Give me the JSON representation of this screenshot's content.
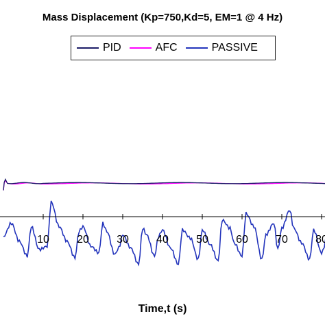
{
  "chart_data": {
    "type": "line",
    "title": "Mass Displacement (Kp=750,Kd=5, EM=1 @ 4 Hz)",
    "xlabel": "Time,t (s)",
    "ylabel": "",
    "xlim": [
      0,
      93
    ],
    "grid": false,
    "legend_position": "top-center",
    "x_ticks": [
      "10",
      "20",
      "30",
      "40",
      "50",
      "60",
      "70",
      "80"
    ],
    "series": [
      {
        "name": "PID",
        "color": "#1a1a66",
        "x": [
          0,
          0.2,
          0.5,
          1,
          2,
          5,
          10,
          20,
          30,
          40,
          50,
          60,
          70,
          80,
          93
        ],
        "y": [
          -0.004,
          0.001,
          0.0025,
          0.0005,
          0.0004,
          0.0004,
          0.0004,
          0.0004,
          0.0004,
          0.0004,
          0.0004,
          0.0004,
          0.0004,
          0.0004,
          0.0004
        ]
      },
      {
        "name": "AFC",
        "color": "#ff00ff",
        "x": [
          0,
          0.2,
          0.5,
          1,
          2,
          5,
          10,
          20,
          30,
          40,
          50,
          60,
          70,
          80,
          93
        ],
        "y": [
          -0.004,
          0.001,
          0.002,
          0.0003,
          0.0002,
          0.0002,
          0.0002,
          0.0002,
          0.0002,
          0.0002,
          0.0002,
          0.0002,
          0.0002,
          0.0002,
          0.0002
        ]
      },
      {
        "name": "PASSIVE",
        "color": "#2233bb",
        "x": [
          0,
          2,
          4,
          6,
          7,
          9,
          11,
          12,
          14,
          16,
          18,
          19,
          20,
          22,
          24,
          25,
          26,
          28,
          29,
          30,
          32,
          34,
          35,
          36,
          38,
          39,
          40,
          42,
          44,
          45,
          47,
          49,
          50,
          52,
          54,
          55,
          57,
          58,
          60,
          61,
          63,
          65,
          66,
          68,
          69,
          70,
          72,
          73,
          75,
          77,
          78,
          80,
          82,
          83,
          85,
          87,
          89,
          90,
          92,
          93
        ],
        "y": [
          -0.032,
          -0.024,
          -0.035,
          -0.044,
          -0.026,
          -0.04,
          -0.038,
          -0.011,
          -0.026,
          -0.035,
          -0.045,
          -0.029,
          -0.026,
          -0.038,
          -0.042,
          -0.024,
          -0.029,
          -0.043,
          -0.039,
          -0.031,
          -0.039,
          -0.049,
          -0.027,
          -0.031,
          -0.044,
          -0.032,
          -0.028,
          -0.039,
          -0.049,
          -0.028,
          -0.033,
          -0.046,
          -0.028,
          -0.037,
          -0.047,
          -0.022,
          -0.027,
          -0.036,
          -0.044,
          -0.018,
          -0.026,
          -0.046,
          -0.031,
          -0.024,
          -0.04,
          -0.027,
          -0.016,
          -0.027,
          -0.036,
          -0.046,
          -0.028,
          -0.042,
          -0.026,
          -0.045,
          -0.031,
          -0.043,
          -0.044,
          -0.037,
          -0.04,
          -0.021
        ]
      }
    ]
  }
}
